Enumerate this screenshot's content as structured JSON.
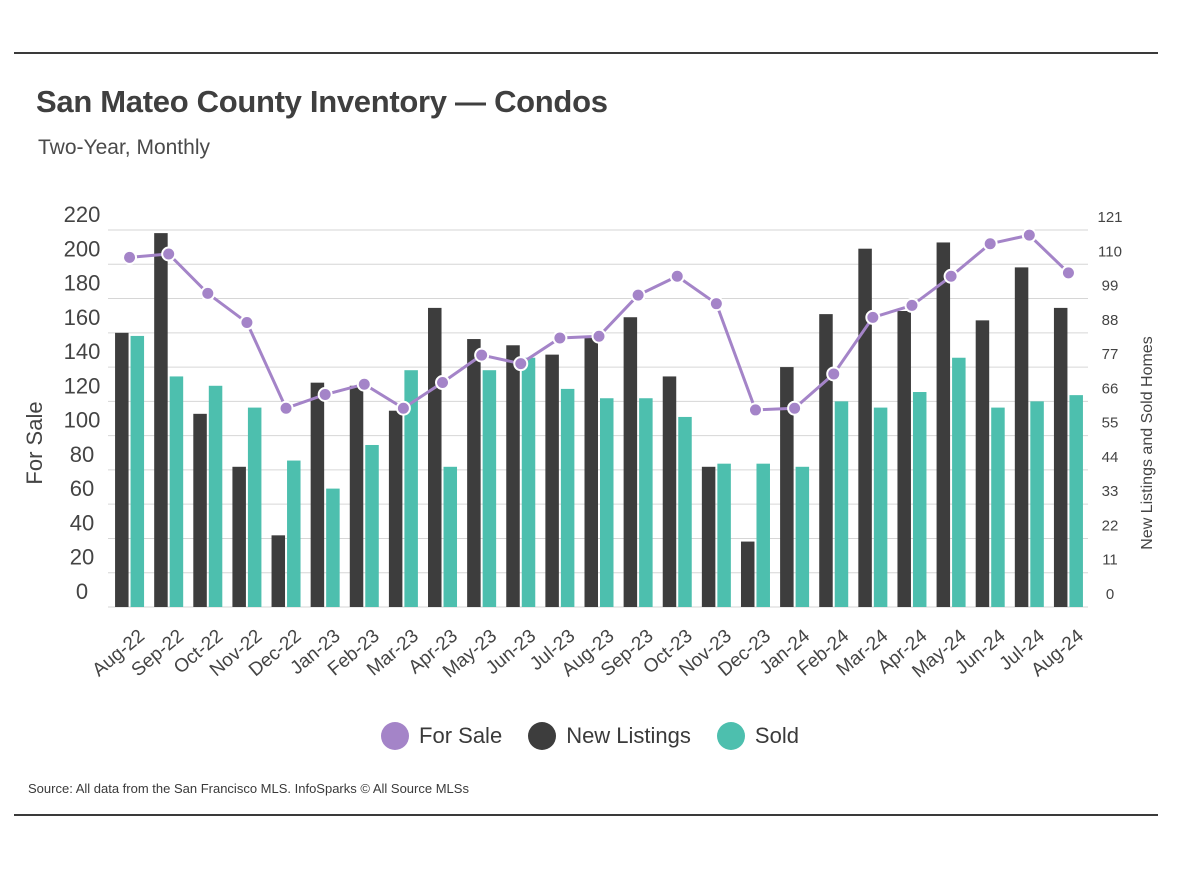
{
  "header": {
    "title": "San Mateo County Inventory — Condos",
    "subtitle": "Two-Year, Monthly"
  },
  "footer": {
    "source": "Source:  All data from the San Francisco MLS. InfoSparks © All Source MLSs"
  },
  "legend": {
    "for_sale": "For Sale",
    "new_listings": "New Listings",
    "sold": "Sold"
  },
  "colors": {
    "for_sale": "#a484c8",
    "new_listings": "#3d3d3d",
    "sold": "#4dbfae",
    "grid": "#d6d6d6",
    "axis_text": "#444444"
  },
  "chart_data": {
    "type": "bar",
    "title": "San Mateo County Inventory — Condos",
    "subtitle": "Two-Year, Monthly",
    "categories": [
      "Aug-22",
      "Sep-22",
      "Oct-22",
      "Nov-22",
      "Dec-22",
      "Jan-23",
      "Feb-23",
      "Mar-23",
      "Apr-23",
      "May-23",
      "Jun-23",
      "Jul-23",
      "Aug-23",
      "Sep-23",
      "Oct-23",
      "Nov-23",
      "Dec-23",
      "Jan-24",
      "Feb-24",
      "Mar-24",
      "Apr-24",
      "May-24",
      "Jun-24",
      "Jul-24",
      "Aug-24"
    ],
    "ylabel_left": "For Sale",
    "ylabel_right": "New Listings and Sold Homes",
    "yticks_left": [
      "0",
      "20",
      "40",
      "60",
      "80",
      "100",
      "120",
      "140",
      "160",
      "180",
      "200",
      "220"
    ],
    "yticks_right": [
      "0",
      "11",
      "22",
      "33",
      "44",
      "55",
      "66",
      "77",
      "88",
      "99",
      "110",
      "121"
    ],
    "ylim_left": [
      0,
      220
    ],
    "ylim_right": [
      0,
      121
    ],
    "legend_position": "bottom-center",
    "series": [
      {
        "name": "New Listings",
        "type": "bar",
        "axis": "right",
        "values": [
          88,
          120,
          62,
          45,
          23,
          72,
          71,
          63,
          96,
          86,
          84,
          81,
          87,
          93,
          74,
          45,
          21,
          77,
          94,
          115,
          95,
          117,
          92,
          109,
          96
        ]
      },
      {
        "name": "Sold",
        "type": "bar",
        "axis": "right",
        "values": [
          87,
          74,
          71,
          64,
          47,
          38,
          52,
          76,
          45,
          76,
          80,
          70,
          67,
          67,
          61,
          46,
          46,
          45,
          66,
          64,
          69,
          80,
          64,
          66,
          68
        ]
      },
      {
        "name": "For Sale",
        "type": "line",
        "axis": "left",
        "values": [
          204,
          206,
          183,
          166,
          116,
          124,
          130,
          116,
          131,
          147,
          142,
          157,
          158,
          182,
          193,
          177,
          115,
          116,
          136,
          169,
          176,
          193,
          212,
          217,
          195
        ]
      }
    ]
  }
}
